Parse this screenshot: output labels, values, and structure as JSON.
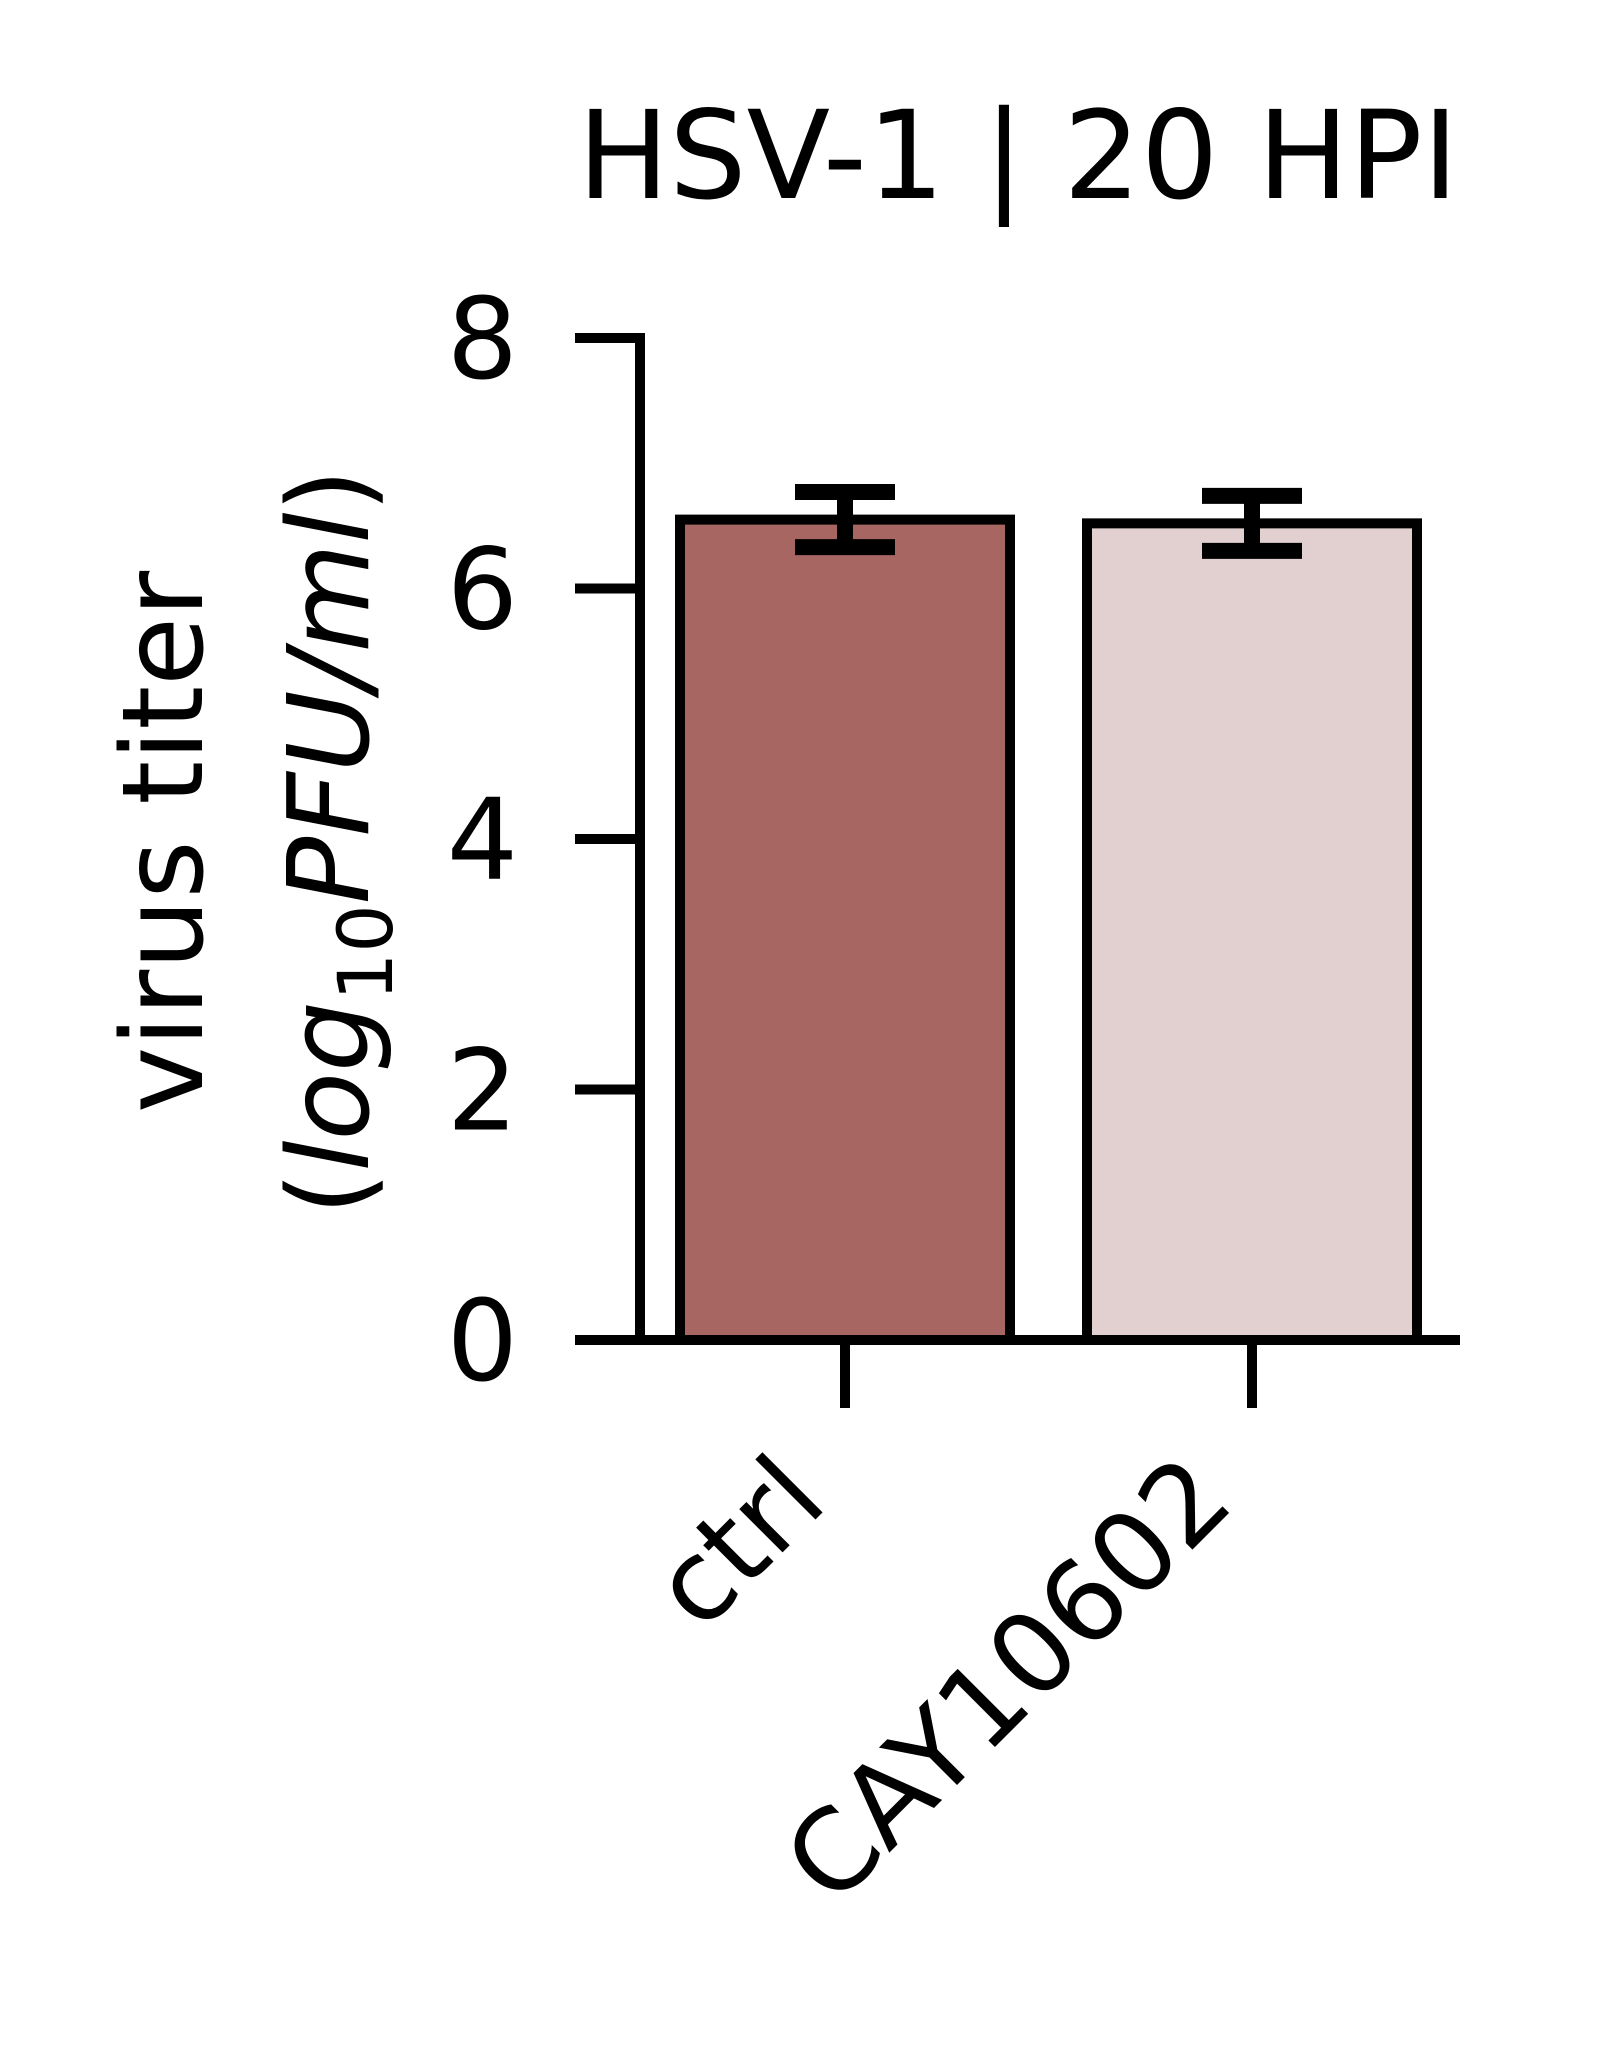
{
  "chart_data": {
    "type": "bar",
    "title": "HSV-1 | 20 HPI",
    "ylabel": {
      "line1": "virus titer",
      "line2_open": "(",
      "line2_log": "log",
      "line2_sub": "10",
      "line2_unit": "PFU/ml",
      "line2_close": ")"
    },
    "xlabel": "",
    "categories": [
      "ctrl",
      "CAY10602"
    ],
    "values": [
      6.55,
      6.52
    ],
    "errors": [
      0.22,
      0.22
    ],
    "colors": [
      "#a86662",
      "#e2d0d0"
    ],
    "ylim": [
      0,
      8
    ],
    "yticks": [
      "0",
      "2",
      "4",
      "6",
      "8"
    ],
    "grid": false,
    "legend": "none"
  }
}
